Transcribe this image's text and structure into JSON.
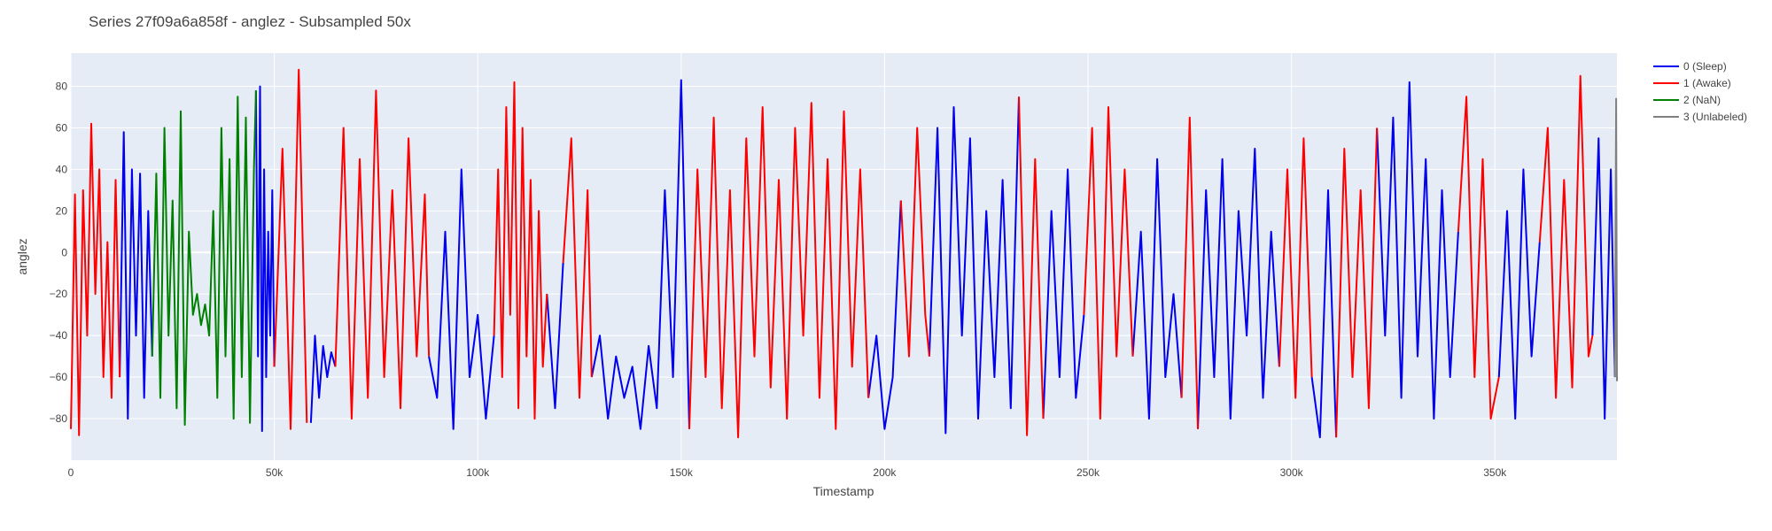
{
  "chart_data": {
    "type": "line",
    "title": "Series 27f09a6a858f - anglez - Subsampled 50x",
    "xlabel": "Timestamp",
    "ylabel": "anglez",
    "xlim": [
      0,
      380000
    ],
    "ylim": [
      -100,
      96
    ],
    "x_ticks": [
      0,
      50000,
      100000,
      150000,
      200000,
      250000,
      300000,
      350000
    ],
    "x_tick_labels": [
      "0",
      "50k",
      "100k",
      "150k",
      "200k",
      "250k",
      "300k",
      "350k"
    ],
    "y_ticks": [
      -80,
      -60,
      -40,
      -20,
      0,
      20,
      40,
      60,
      80
    ],
    "y_tick_labels": [
      "−80",
      "−60",
      "−40",
      "−20",
      "0",
      "20",
      "40",
      "60",
      "80"
    ],
    "grid": true,
    "legend_position": "top-right, outside plot",
    "background": "#e5ecf6",
    "series": [
      {
        "name": "0 (Sleep)",
        "color": "#0000ee",
        "segments": [
          {
            "x": [
              12000,
              13000,
              14000,
              15000,
              16000,
              17000,
              18000,
              19000,
              20000
            ],
            "y": [
              -60,
              58,
              -80,
              40,
              -40,
              38,
              -70,
              20,
              -50
            ]
          },
          {
            "x": [
              45500,
              46000,
              46500,
              47000,
              47500,
              48000,
              48500,
              49000,
              49500,
              50000
            ],
            "y": [
              78,
              -50,
              80,
              -86,
              40,
              -60,
              10,
              -40,
              30,
              -55
            ]
          },
          {
            "x": [
              59000,
              60000,
              61000,
              62000,
              63000,
              64000,
              65000
            ],
            "y": [
              -82,
              -40,
              -70,
              -45,
              -60,
              -48,
              -55
            ]
          },
          {
            "x": [
              88000,
              90000,
              92000,
              94000,
              96000,
              98000,
              100000,
              102000,
              104000
            ],
            "y": [
              -50,
              -70,
              10,
              -85,
              40,
              -60,
              -30,
              -80,
              -40
            ]
          },
          {
            "x": [
              117000,
              119000,
              121000
            ],
            "y": [
              -20,
              -75,
              -5
            ]
          },
          {
            "x": [
              128000,
              130000,
              132000,
              134000,
              136000,
              138000,
              140000,
              142000,
              144000,
              146000,
              148000,
              150000,
              152000
            ],
            "y": [
              -60,
              -40,
              -80,
              -50,
              -70,
              -55,
              -85,
              -45,
              -75,
              30,
              -60,
              83,
              -85
            ]
          },
          {
            "x": [
              196000,
              198000,
              200000,
              202000,
              204000
            ],
            "y": [
              -70,
              -40,
              -85,
              -60,
              25
            ]
          },
          {
            "x": [
              211000,
              213000,
              215000,
              217000,
              219000,
              221000,
              223000,
              225000,
              227000,
              229000,
              231000,
              233000
            ],
            "y": [
              -50,
              60,
              -87,
              70,
              -40,
              55,
              -80,
              20,
              -60,
              35,
              -75,
              75
            ]
          },
          {
            "x": [
              239000,
              241000,
              243000,
              245000,
              247000,
              249000
            ],
            "y": [
              -80,
              20,
              -60,
              40,
              -70,
              -30
            ]
          },
          {
            "x": [
              261000,
              263000,
              265000,
              267000,
              269000,
              271000,
              273000
            ],
            "y": [
              -50,
              10,
              -80,
              45,
              -60,
              -20,
              -70
            ]
          },
          {
            "x": [
              277000,
              279000,
              281000,
              283000,
              285000,
              287000,
              289000,
              291000,
              293000,
              295000,
              297000
            ],
            "y": [
              -85,
              30,
              -60,
              45,
              -80,
              20,
              -40,
              50,
              -70,
              10,
              -55
            ]
          },
          {
            "x": [
              305000,
              307000,
              309000,
              311000
            ],
            "y": [
              -60,
              -89,
              30,
              -89
            ]
          },
          {
            "x": [
              321000,
              323000,
              325000,
              327000,
              329000,
              331000,
              333000,
              335000,
              337000,
              339000,
              341000
            ],
            "y": [
              60,
              -40,
              65,
              -70,
              82,
              -50,
              45,
              -80,
              30,
              -60,
              10
            ]
          },
          {
            "x": [
              351000,
              353000,
              355000,
              357000,
              359000,
              361000
            ],
            "y": [
              -60,
              20,
              -80,
              40,
              -50,
              5
            ]
          },
          {
            "x": [
              374000,
              375500,
              377000,
              378500,
              379500
            ],
            "y": [
              -40,
              55,
              -80,
              40,
              -60
            ]
          }
        ]
      },
      {
        "name": "1 (Awake)",
        "color": "#ff0000",
        "segments": [
          {
            "x": [
              0,
              1000,
              2000,
              3000,
              4000,
              5000,
              6000,
              7000,
              8000,
              9000,
              10000,
              11000,
              12000
            ],
            "y": [
              -85,
              28,
              -88,
              30,
              -40,
              62,
              -20,
              40,
              -60,
              5,
              -70,
              35,
              -60
            ]
          },
          {
            "x": [
              50000,
              52000,
              54000,
              56000,
              58000
            ],
            "y": [
              -55,
              50,
              -85,
              88,
              -82
            ]
          },
          {
            "x": [
              65000,
              67000,
              69000,
              71000,
              73000,
              75000,
              77000,
              79000,
              81000,
              83000,
              85000,
              87000,
              88000
            ],
            "y": [
              -55,
              60,
              -80,
              45,
              -70,
              78,
              -60,
              30,
              -75,
              55,
              -50,
              28,
              -50
            ]
          },
          {
            "x": [
              104000,
              105000,
              106000,
              107000,
              108000,
              109000,
              110000,
              111000,
              112000,
              113000,
              114000,
              115000,
              116000,
              117000
            ],
            "y": [
              -40,
              40,
              -60,
              70,
              -30,
              82,
              -75,
              60,
              -50,
              35,
              -80,
              20,
              -55,
              -20
            ]
          },
          {
            "x": [
              121000,
              123000,
              125000,
              127000,
              128000
            ],
            "y": [
              -5,
              55,
              -70,
              30,
              -60
            ]
          },
          {
            "x": [
              152000,
              154000,
              156000,
              158000,
              160000,
              162000,
              164000,
              166000,
              168000,
              170000,
              172000,
              174000,
              176000,
              178000,
              180000,
              182000,
              184000,
              186000,
              188000,
              190000,
              192000,
              194000,
              196000
            ],
            "y": [
              -85,
              40,
              -60,
              65,
              -75,
              30,
              -89,
              55,
              -50,
              70,
              -65,
              35,
              -80,
              60,
              -40,
              72,
              -70,
              45,
              -85,
              68,
              -55,
              40,
              -70
            ]
          },
          {
            "x": [
              204000,
              206000,
              208000,
              210000,
              211000
            ],
            "y": [
              25,
              -50,
              60,
              -30,
              -50
            ]
          },
          {
            "x": [
              233000,
              235000,
              237000,
              239000
            ],
            "y": [
              75,
              -88,
              45,
              -80
            ]
          },
          {
            "x": [
              249000,
              251000,
              253000,
              255000,
              257000,
              259000,
              261000
            ],
            "y": [
              -30,
              60,
              -80,
              70,
              -50,
              40,
              -50
            ]
          },
          {
            "x": [
              273000,
              275000,
              277000
            ],
            "y": [
              -70,
              65,
              -85
            ]
          },
          {
            "x": [
              297000,
              299000,
              301000,
              303000,
              305000
            ],
            "y": [
              -55,
              40,
              -70,
              55,
              -60
            ]
          },
          {
            "x": [
              311000,
              313000,
              315000,
              317000,
              319000,
              321000
            ],
            "y": [
              -89,
              50,
              -60,
              30,
              -75,
              60
            ]
          },
          {
            "x": [
              341000,
              343000,
              345000,
              347000,
              349000,
              351000
            ],
            "y": [
              10,
              75,
              -60,
              45,
              -80,
              -60
            ]
          },
          {
            "x": [
              361000,
              363000,
              365000,
              367000,
              369000,
              371000,
              373000,
              374000
            ],
            "y": [
              5,
              60,
              -70,
              35,
              -65,
              85,
              -50,
              -40
            ]
          }
        ]
      },
      {
        "name": "2 (NaN)",
        "color": "#008000",
        "segments": [
          {
            "x": [
              20000,
              21000,
              22000,
              23000,
              24000,
              25000,
              26000,
              27000,
              28000,
              29000,
              30000,
              31000,
              32000,
              33000,
              34000,
              35000,
              36000,
              37000,
              38000,
              39000,
              40000,
              41000,
              42000,
              43000,
              44000,
              45000,
              45500
            ],
            "y": [
              -50,
              38,
              -70,
              60,
              -40,
              25,
              -75,
              68,
              -83,
              10,
              -30,
              -20,
              -35,
              -25,
              -40,
              20,
              -70,
              60,
              -50,
              45,
              -80,
              75,
              -60,
              65,
              -82,
              40,
              78
            ]
          }
        ]
      },
      {
        "name": "3 (Unlabeled)",
        "color": "#808080",
        "segments": [
          {
            "x": [
              379500,
              379800,
              380000
            ],
            "y": [
              -60,
              74,
              -62
            ]
          }
        ]
      }
    ]
  }
}
